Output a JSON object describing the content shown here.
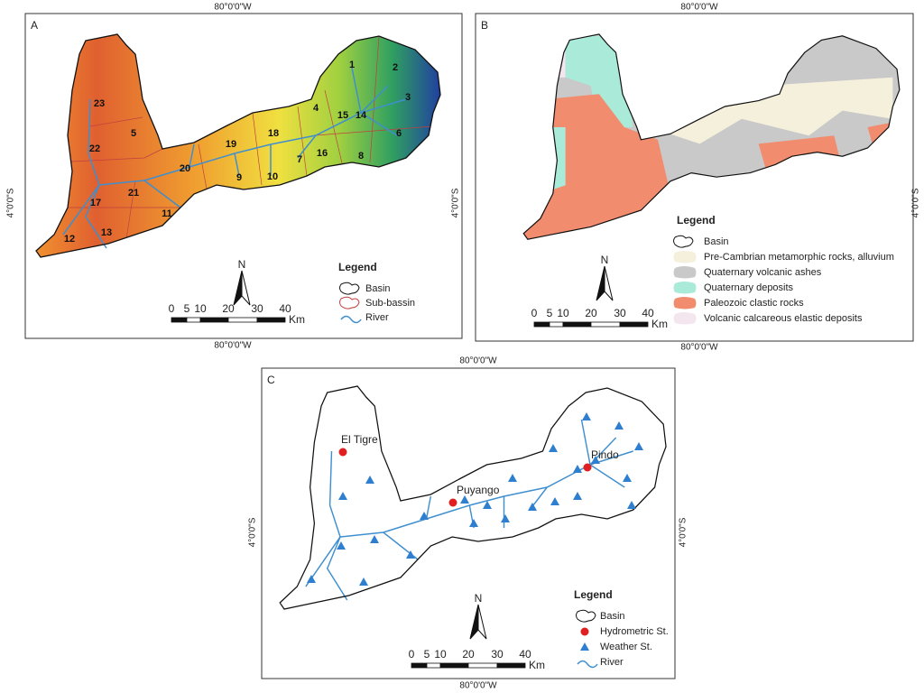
{
  "figure": {
    "panels": [
      {
        "label": "A",
        "coords": {
          "top": "80°0'0\"W",
          "bottom": "80°0'0\"W",
          "left": "4°0'0\"S",
          "right": "4°0'0\"S"
        },
        "subbasins": [
          "1",
          "2",
          "3",
          "4",
          "5",
          "6",
          "7",
          "8",
          "9",
          "10",
          "11",
          "12",
          "13",
          "14",
          "15",
          "16",
          "17",
          "18",
          "19",
          "20",
          "21",
          "22",
          "23"
        ],
        "north": "N",
        "scale": {
          "ticks": [
            "0",
            "5",
            "10",
            "20",
            "30",
            "40"
          ],
          "unit": "Km"
        },
        "legend": {
          "title": "Legend",
          "items": [
            {
              "label": "Basin"
            },
            {
              "label": "Sub-bassin"
            },
            {
              "label": "River"
            }
          ]
        }
      },
      {
        "label": "B",
        "coords": {
          "top": "80°0'0\"W",
          "bottom": "80°0'0\"W",
          "right": "4°0'0\"S"
        },
        "north": "N",
        "scale": {
          "ticks": [
            "0",
            "5",
            "10",
            "20",
            "30",
            "40"
          ],
          "unit": "Km"
        },
        "legend": {
          "title": "Legend",
          "items": [
            {
              "label": "Basin"
            },
            {
              "label": "Pre-Cambrian metamorphic rocks, alluvium",
              "color": "#f4f0dc"
            },
            {
              "label": "Quaternary volcanic ashes",
              "color": "#c9c9c9"
            },
            {
              "label": "Quaternary deposits",
              "color": "#a9ead9"
            },
            {
              "label": "Paleozoic clastic rocks",
              "color": "#f28c6e"
            },
            {
              "label": "Volcanic calcareous elastic deposits",
              "color": "#f4e6ef"
            }
          ]
        }
      },
      {
        "label": "C",
        "coords": {
          "top": "80°0'0\"W",
          "bottom": "80°0'0\"W",
          "left": "4°0'0\"S",
          "right": "4°0'0\"S"
        },
        "stations": [
          "El Tigre",
          "Puyango",
          "Pindo"
        ],
        "north": "N",
        "scale": {
          "ticks": [
            "0",
            "5",
            "10",
            "20",
            "30",
            "40"
          ],
          "unit": "Km"
        },
        "legend": {
          "title": "Legend",
          "items": [
            {
              "label": "Basin"
            },
            {
              "label": "Hydrometric St."
            },
            {
              "label": "Weather St."
            },
            {
              "label": "River"
            }
          ]
        }
      }
    ]
  }
}
